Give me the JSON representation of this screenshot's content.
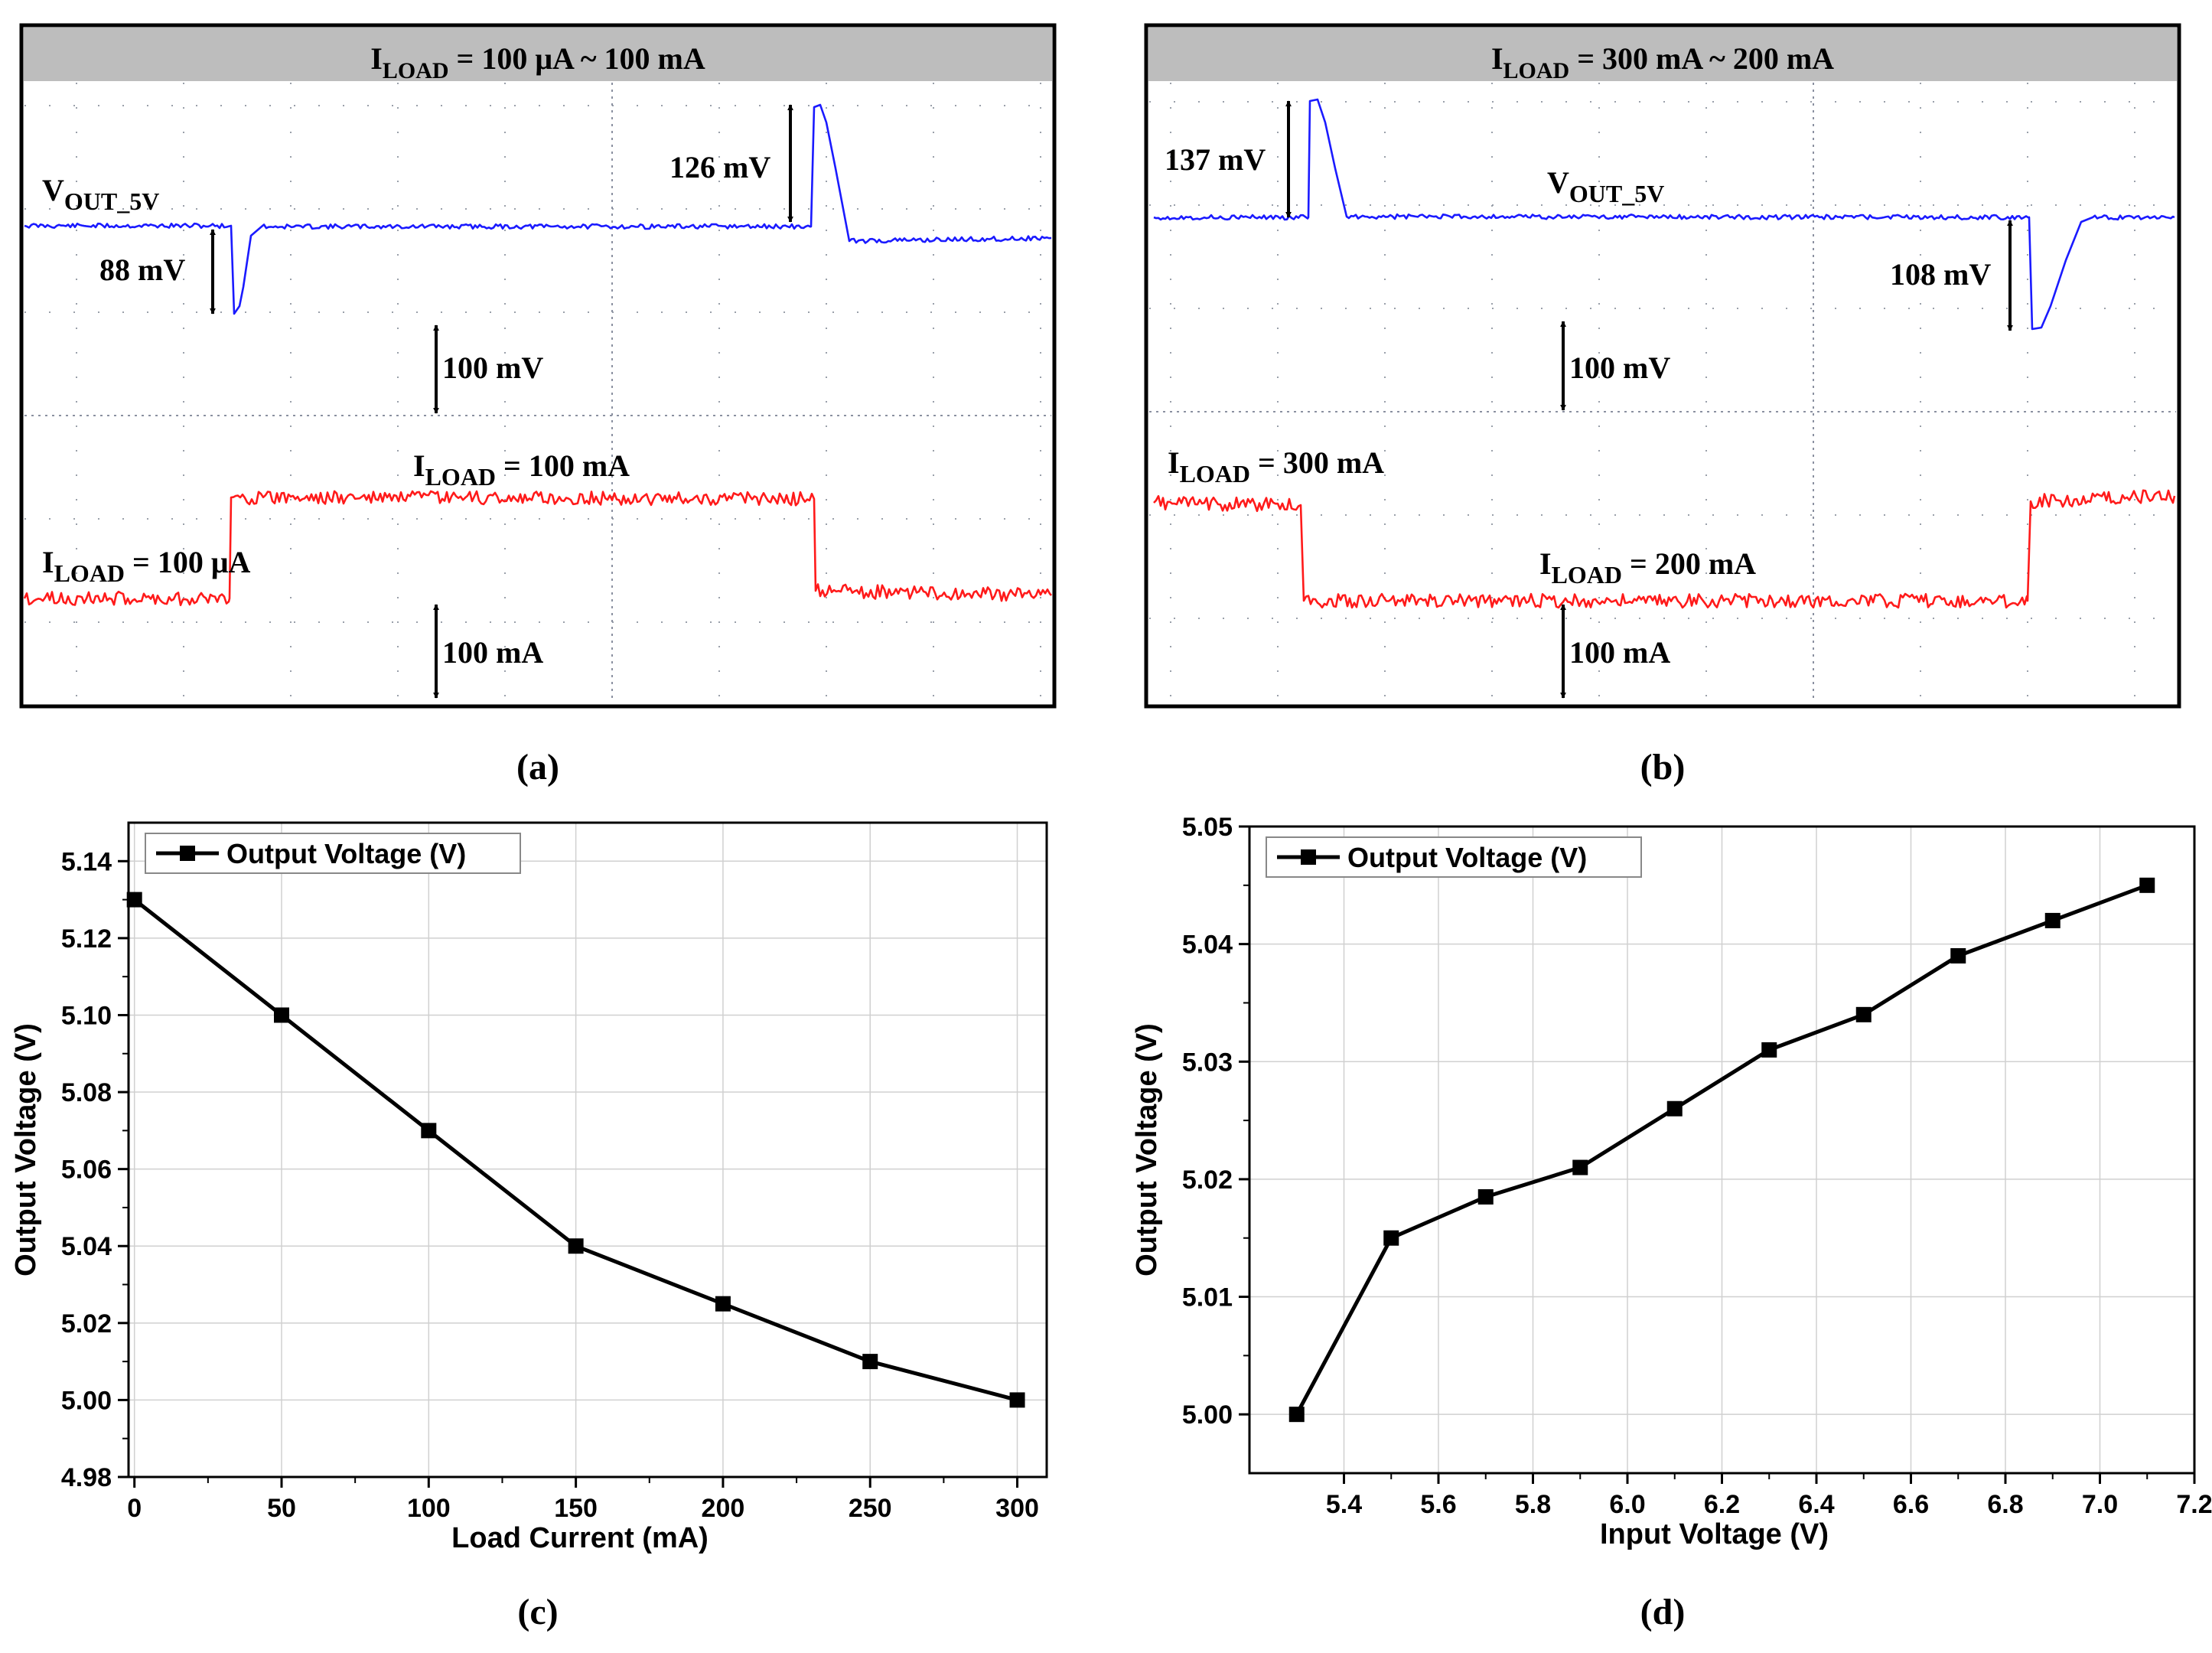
{
  "chart_data": [
    {
      "type": "line",
      "kind": "oscilloscope",
      "panel_label": "(a)",
      "header": {
        "main": "I",
        "sub": "LOAD",
        "rest": " = 100 μA ~ 100 mA"
      },
      "scale_voltage": "100 mV",
      "scale_current": "100 mA",
      "series": [
        {
          "name": "VOUT_5V",
          "color": "#1a1aff"
        },
        {
          "name": "ILOAD",
          "color": "#ff1a1a"
        }
      ],
      "annotations": {
        "vout": {
          "main": "V",
          "sub": "OUT_5V"
        },
        "undershoot": "88 mV",
        "overshoot": "126 mV",
        "load_low": {
          "main": "I",
          "sub": "LOAD",
          "rest": " = 100 μA"
        },
        "load_high": {
          "main": "I",
          "sub": "LOAD",
          "rest": " = 100 mA"
        }
      }
    },
    {
      "type": "line",
      "kind": "oscilloscope",
      "panel_label": "(b)",
      "header": {
        "main": "I",
        "sub": "LOAD",
        "rest": " = 300 mA ~ 200 mA"
      },
      "scale_voltage": "100 mV",
      "scale_current": "100 mA",
      "series": [
        {
          "name": "VOUT_5V",
          "color": "#1a1aff"
        },
        {
          "name": "ILOAD",
          "color": "#ff1a1a"
        }
      ],
      "annotations": {
        "vout": {
          "main": "V",
          "sub": "OUT_5V"
        },
        "overshoot": "137 mV",
        "undershoot": "108 mV",
        "load_high": {
          "main": "I",
          "sub": "LOAD",
          "rest": " = 300 mA"
        },
        "load_low": {
          "main": "I",
          "sub": "LOAD",
          "rest": " = 200 mA"
        }
      }
    },
    {
      "type": "line",
      "panel_label": "(c)",
      "xlabel": "Load Current (mA)",
      "ylabel": "Output Voltage (V)",
      "legend": "Output Voltage (V)",
      "legend_position": "top-left",
      "xlim": [
        -2,
        310
      ],
      "ylim": [
        4.98,
        5.15
      ],
      "xticks": [
        0,
        50,
        100,
        150,
        200,
        250,
        300
      ],
      "xtick_labels": [
        "0",
        "50",
        "100",
        "150",
        "200",
        "250",
        "300"
      ],
      "yticks": [
        4.98,
        5.0,
        5.02,
        5.04,
        5.06,
        5.08,
        5.1,
        5.12,
        5.14
      ],
      "ytick_labels": [
        "4.98",
        "5.00",
        "5.02",
        "5.04",
        "5.06",
        "5.08",
        "5.10",
        "5.12",
        "5.14"
      ],
      "grid": true,
      "x": [
        0,
        50,
        100,
        150,
        200,
        250,
        300
      ],
      "y": [
        5.13,
        5.1,
        5.07,
        5.04,
        5.025,
        5.01,
        5.0
      ]
    },
    {
      "type": "line",
      "panel_label": "(d)",
      "xlabel": "Input Voltage (V)",
      "ylabel": "Output Voltage (V)",
      "legend": "Output Voltage (V)",
      "legend_position": "top-left",
      "xlim": [
        5.2,
        7.2
      ],
      "ylim": [
        4.995,
        5.05
      ],
      "xticks": [
        5.4,
        5.6,
        5.8,
        6.0,
        6.2,
        6.4,
        6.6,
        6.8,
        7.0,
        7.2
      ],
      "xtick_labels": [
        "5.4",
        "5.6",
        "5.8",
        "6.0",
        "6.2",
        "6.4",
        "6.6",
        "6.8",
        "7.0",
        "7.2"
      ],
      "yticks": [
        5.0,
        5.01,
        5.02,
        5.03,
        5.04,
        5.05
      ],
      "ytick_labels": [
        "5.00",
        "5.01",
        "5.02",
        "5.03",
        "5.04",
        "5.05"
      ],
      "grid": true,
      "x": [
        5.3,
        5.5,
        5.7,
        5.9,
        6.1,
        6.3,
        6.5,
        6.7,
        6.9,
        7.1
      ],
      "y": [
        5.0,
        5.015,
        5.0185,
        5.021,
        5.026,
        5.031,
        5.034,
        5.039,
        5.042,
        5.045
      ]
    }
  ]
}
